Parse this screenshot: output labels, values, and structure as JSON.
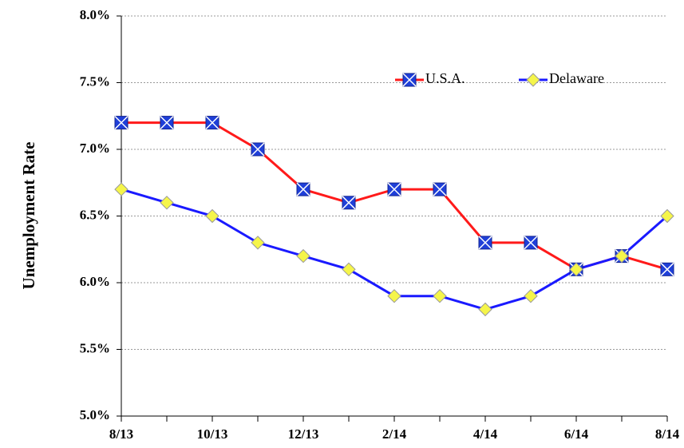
{
  "chart_data": {
    "type": "line",
    "y_label": "Unemployment Rate",
    "categories": [
      "8/13",
      null,
      "10/13",
      null,
      "12/13",
      null,
      "2/14",
      null,
      "4/14",
      null,
      "6/14",
      null,
      "8/14"
    ],
    "series": [
      {
        "name": "U.S.A.",
        "color": "#ff1a1a",
        "marker": "square-x",
        "marker_color": "#1f3fd8",
        "values": [
          7.2,
          7.2,
          7.2,
          7.0,
          6.7,
          6.6,
          6.7,
          6.7,
          6.3,
          6.3,
          6.1,
          6.2,
          6.1
        ]
      },
      {
        "name": "Delaware",
        "color": "#1a1aff",
        "marker": "diamond",
        "marker_color": "#f5f54a",
        "values": [
          6.7,
          6.6,
          6.5,
          6.3,
          6.2,
          6.1,
          5.9,
          5.9,
          5.8,
          5.9,
          6.1,
          6.2,
          6.5
        ]
      }
    ],
    "ylim": [
      5,
      8
    ],
    "yticks": [
      {
        "value": 5,
        "label": "5.0%"
      },
      {
        "value": 5.5,
        "label": "5.5%"
      },
      {
        "value": 6,
        "label": "6.0%"
      },
      {
        "value": 6.5,
        "label": "6.5%"
      },
      {
        "value": 7,
        "label": "7.0%"
      },
      {
        "value": 7.5,
        "label": "7.5%"
      },
      {
        "value": 8,
        "label": "8.0%"
      }
    ],
    "grid": true
  }
}
